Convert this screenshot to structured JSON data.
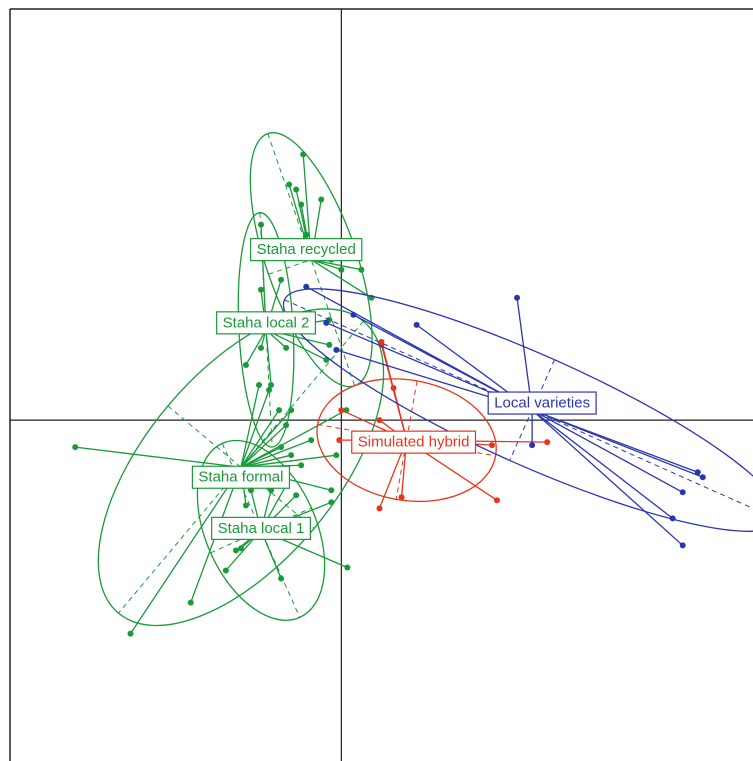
{
  "chart_data": {
    "type": "scatter",
    "title": "",
    "xlabel": "",
    "ylabel": "",
    "grid": false,
    "xlim": [
      -3.3,
      4.1
    ],
    "ylim": [
      -3.4,
      4.1
    ],
    "zero_lines": true,
    "groups": [
      {
        "name": "Staha recycled",
        "color": "#1a9a3a",
        "center": [
          -0.3,
          1.6
        ],
        "label_at": [
          -0.35,
          1.7
        ],
        "ellipse": {
          "rx": 0.45,
          "ry": 1.33,
          "angle": -19
        },
        "points": [
          [
            -0.38,
            2.65
          ],
          [
            -0.52,
            2.35
          ],
          [
            -0.2,
            2.2
          ],
          [
            -0.4,
            2.15
          ],
          [
            -0.45,
            2.3
          ],
          [
            0.2,
            1.5
          ],
          [
            0.3,
            1.22
          ],
          [
            -0.35,
            1.85
          ],
          [
            -0.1,
            1.6
          ],
          [
            0.0,
            1.5
          ]
        ]
      },
      {
        "name": "Staha local 2",
        "color": "#1a9a3a",
        "center": [
          -0.75,
          0.9
        ],
        "label_at": [
          -0.75,
          0.97
        ],
        "ellipse": {
          "rx": 0.27,
          "ry": 1.17,
          "angle": -3
        },
        "points": [
          [
            -0.8,
            1.95
          ],
          [
            -0.6,
            1.4
          ],
          [
            -0.8,
            1.3
          ],
          [
            -0.7,
            0.95
          ],
          [
            -0.8,
            0.72
          ],
          [
            -0.55,
            0.72
          ],
          [
            -0.95,
            0.55
          ],
          [
            -0.12,
            0.75
          ],
          [
            -0.15,
            0.6
          ],
          [
            -0.12,
            1.0
          ],
          [
            -0.7,
            0.35
          ]
        ]
      },
      {
        "name": "Staha formal",
        "color": "#1a9a3a",
        "center": [
          -1.0,
          -0.47
        ],
        "label_at": [
          -1.0,
          -0.57
        ],
        "ellipse": {
          "rx": 0.95,
          "ry": 1.9,
          "angle": 40
        },
        "points": [
          [
            -2.65,
            -0.27
          ],
          [
            -0.62,
            0.1
          ],
          [
            -0.82,
            0.35
          ],
          [
            -0.72,
            0.3
          ],
          [
            -0.5,
            0.1
          ],
          [
            -0.55,
            -0.05
          ],
          [
            -0.6,
            -0.27
          ],
          [
            -0.5,
            -0.35
          ],
          [
            -0.3,
            -0.2
          ],
          [
            -0.4,
            -0.45
          ],
          [
            0.05,
            0.1
          ],
          [
            -0.05,
            -0.35
          ],
          [
            -0.1,
            -0.7
          ],
          [
            -0.95,
            -0.85
          ],
          [
            -2.1,
            -2.13
          ],
          [
            -1.5,
            -1.82
          ]
        ]
      },
      {
        "name": "Staha local 1",
        "color": "#1a9a3a",
        "center": [
          -0.8,
          -1.1
        ],
        "label_at": [
          -0.8,
          -1.08
        ],
        "ellipse": {
          "rx": 0.55,
          "ry": 0.95,
          "angle": -24
        },
        "points": [
          [
            -0.9,
            -0.7
          ],
          [
            -0.7,
            -0.7
          ],
          [
            -0.55,
            -0.65
          ],
          [
            -0.1,
            -0.82
          ],
          [
            0.06,
            -1.47
          ],
          [
            -0.6,
            -1.58
          ],
          [
            -1.15,
            -1.5
          ],
          [
            -1.05,
            -1.3
          ],
          [
            -1.0,
            -1.28
          ],
          [
            -0.75,
            -1.0
          ],
          [
            -0.45,
            -0.75
          ]
        ]
      },
      {
        "name": "Simulated hybrid",
        "color": "#e8341c",
        "center": [
          0.65,
          -0.2
        ],
        "label_at": [
          0.72,
          -0.22
        ],
        "ellipse": {
          "rx": 0.9,
          "ry": 0.6,
          "angle": 10
        },
        "points": [
          [
            0.4,
            0.78
          ],
          [
            0.52,
            0.32
          ],
          [
            0.0,
            0.1
          ],
          [
            0.38,
            0.0
          ],
          [
            -0.02,
            -0.2
          ],
          [
            1.5,
            -0.25
          ],
          [
            2.05,
            -0.22
          ],
          [
            1.55,
            -0.8
          ],
          [
            0.6,
            -0.77
          ],
          [
            0.38,
            -0.88
          ],
          [
            0.4,
            0.75
          ]
        ]
      },
      {
        "name": "Local varieties",
        "color": "#2a36b0",
        "center": [
          1.9,
          0.1
        ],
        "label_at": [
          2.0,
          0.17
        ],
        "ellipse": {
          "rx": 2.7,
          "ry": 0.55,
          "angle": 24
        },
        "points": [
          [
            -0.35,
            1.33
          ],
          [
            0.12,
            1.05
          ],
          [
            -0.15,
            0.97
          ],
          [
            0.75,
            0.95
          ],
          [
            1.75,
            1.22
          ],
          [
            -0.05,
            0.7
          ],
          [
            1.9,
            -0.25
          ],
          [
            3.55,
            -0.52
          ],
          [
            3.6,
            -0.57
          ],
          [
            3.4,
            -0.72
          ],
          [
            3.3,
            -0.98
          ],
          [
            3.4,
            -1.25
          ]
        ]
      }
    ]
  }
}
